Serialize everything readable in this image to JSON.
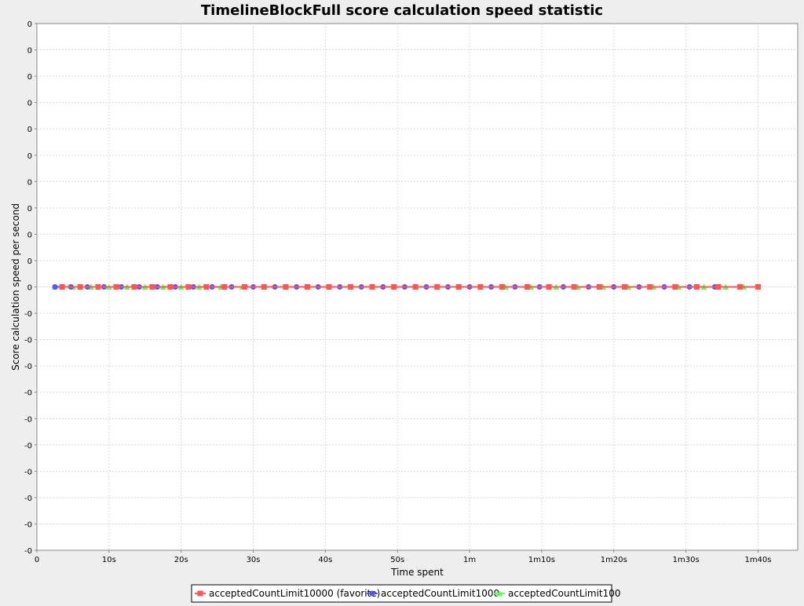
{
  "chart_data": {
    "type": "line",
    "title": "TimelineBlockFull score calculation speed statistic",
    "xlabel": "Time spent",
    "ylabel": "Score calculation speed per second",
    "x_ticks": [
      {
        "value": 0,
        "label": "0"
      },
      {
        "value": 10,
        "label": "10s"
      },
      {
        "value": 20,
        "label": "20s"
      },
      {
        "value": 30,
        "label": "30s"
      },
      {
        "value": 40,
        "label": "40s"
      },
      {
        "value": 50,
        "label": "50s"
      },
      {
        "value": 60,
        "label": "1m"
      },
      {
        "value": 70,
        "label": "1m10s"
      },
      {
        "value": 80,
        "label": "1m20s"
      },
      {
        "value": 90,
        "label": "1m30s"
      },
      {
        "value": 100,
        "label": "1m40s"
      }
    ],
    "y_tick_labels": [
      "0",
      "0",
      "0",
      "0",
      "0",
      "0",
      "0",
      "0",
      "0",
      "0",
      "0",
      "-0",
      "-0",
      "-0",
      "-0",
      "-0",
      "-0",
      "-0",
      "-0",
      "-0",
      "-0"
    ],
    "xlim": [
      0,
      105.5
    ],
    "ylim": [
      -1,
      1
    ],
    "grid": true,
    "legend_position": "bottom",
    "series": [
      {
        "name": "acceptedCountLimit10000 (favorite)",
        "color": "#ff5555",
        "marker": "square",
        "x": [
          3.5,
          6,
          8.5,
          11,
          13.5,
          16,
          18.5,
          21,
          23.5,
          26,
          28.8,
          31.5,
          34.5,
          37.5,
          40.5,
          43.5,
          46.5,
          49.5,
          52.5,
          55.5,
          58.5,
          61.5,
          64.5,
          68,
          71,
          74.5,
          78,
          81.5,
          85,
          88.5,
          91.5,
          94.5,
          97.5,
          100
        ],
        "y": [
          0,
          0,
          0,
          0,
          0,
          0,
          0,
          0,
          0,
          0,
          0,
          0,
          0,
          0,
          0,
          0,
          0,
          0,
          0,
          0,
          0,
          0,
          0,
          0,
          0,
          0,
          0,
          0,
          0,
          0,
          0,
          0,
          0,
          0
        ]
      },
      {
        "name": "acceptedCountLimit1000",
        "color": "#5555ff",
        "marker": "circle",
        "x": [
          2.5,
          4.7,
          7,
          9.3,
          11.7,
          14.2,
          16.7,
          19.2,
          21.7,
          24.3,
          27,
          30,
          33,
          36,
          39,
          42,
          45,
          48,
          51,
          54,
          57,
          60,
          63,
          66.3,
          69.7,
          73,
          76.5,
          80,
          83.5,
          87,
          90.5,
          94,
          97.5
        ],
        "y": [
          0,
          0,
          0,
          0,
          0,
          0,
          0,
          0,
          0,
          0,
          0,
          0,
          0,
          0,
          0,
          0,
          0,
          0,
          0,
          0,
          0,
          0,
          0,
          0,
          0,
          0,
          0,
          0,
          0,
          0,
          0,
          0,
          0
        ]
      },
      {
        "name": "acceptedCountLimit100",
        "color": "#55ff55",
        "marker": "triangle",
        "x": [
          2.5,
          5,
          7.5,
          10,
          12.5,
          15,
          17.5,
          20,
          22.5,
          25.5,
          28.5,
          31.5,
          34.5,
          37.5,
          40.5,
          43.5,
          46.5,
          49.5,
          52.5,
          55.5,
          58.5,
          61.5,
          65,
          68.5,
          72,
          75,
          78.5,
          82,
          85.5,
          89,
          92.5,
          95.5,
          98
        ],
        "y": [
          0,
          0,
          0,
          0,
          0,
          0,
          0,
          0,
          0,
          0,
          0,
          0,
          0,
          0,
          0,
          0,
          0,
          0,
          0,
          0,
          0,
          0,
          0,
          0,
          0,
          0,
          0,
          0,
          0,
          0,
          0,
          0,
          0
        ]
      }
    ]
  }
}
